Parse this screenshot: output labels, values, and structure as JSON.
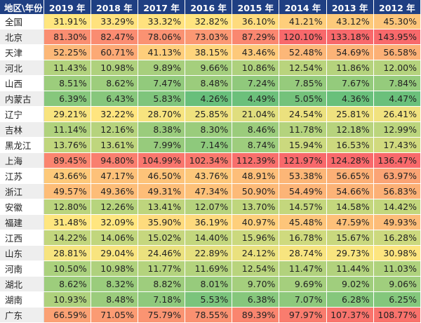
{
  "chart_data": {
    "type": "table",
    "title": "",
    "corner_label": "地区\\年份",
    "columns": [
      "2019 年",
      "2018 年",
      "2017 年",
      "2016 年",
      "2015 年",
      "2014 年",
      "2013 年",
      "2012 年"
    ],
    "rows": [
      {
        "region": "全国",
        "values": [
          "31.91%",
          "33.29%",
          "33.32%",
          "32.82%",
          "36.10%",
          "41.21%",
          "43.12%",
          "45.30%"
        ]
      },
      {
        "region": "北京",
        "values": [
          "81.30%",
          "82.47%",
          "78.06%",
          "73.03%",
          "87.29%",
          "120.10%",
          "133.18%",
          "143.95%"
        ]
      },
      {
        "region": "天津",
        "values": [
          "52.25%",
          "60.71%",
          "41.13%",
          "38.15%",
          "43.46%",
          "52.48%",
          "54.69%",
          "56.58%"
        ]
      },
      {
        "region": "河北",
        "values": [
          "11.43%",
          "10.98%",
          "9.89%",
          "9.66%",
          "10.86%",
          "12.54%",
          "11.86%",
          "12.00%"
        ]
      },
      {
        "region": "山西",
        "values": [
          "8.51%",
          "8.62%",
          "7.47%",
          "8.48%",
          "7.24%",
          "7.85%",
          "7.67%",
          "7.84%"
        ]
      },
      {
        "region": "内蒙古",
        "values": [
          "6.39%",
          "6.43%",
          "5.83%",
          "4.26%",
          "4.49%",
          "5.05%",
          "4.36%",
          "4.47%"
        ]
      },
      {
        "region": "辽宁",
        "values": [
          "29.21%",
          "32.22%",
          "28.70%",
          "25.85%",
          "21.04%",
          "24.54%",
          "25.81%",
          "26.41%"
        ]
      },
      {
        "region": "吉林",
        "values": [
          "11.14%",
          "12.16%",
          "8.38%",
          "8.30%",
          "8.46%",
          "11.78%",
          "12.18%",
          "12.99%"
        ]
      },
      {
        "region": "黑龙江",
        "values": [
          "13.76%",
          "13.61%",
          "7.99%",
          "7.14%",
          "8.74%",
          "15.94%",
          "16.53%",
          "17.43%"
        ]
      },
      {
        "region": "上海",
        "values": [
          "89.45%",
          "94.80%",
          "104.99%",
          "102.34%",
          "112.39%",
          "121.97%",
          "124.28%",
          "136.47%"
        ]
      },
      {
        "region": "江苏",
        "values": [
          "43.66%",
          "47.17%",
          "46.50%",
          "43.76%",
          "48.91%",
          "53.38%",
          "56.65%",
          "63.97%"
        ]
      },
      {
        "region": "浙江",
        "values": [
          "49.57%",
          "49.36%",
          "49.31%",
          "47.34%",
          "50.90%",
          "54.49%",
          "54.66%",
          "56.83%"
        ]
      },
      {
        "region": "安徽",
        "values": [
          "12.80%",
          "12.26%",
          "13.41%",
          "12.07%",
          "13.70%",
          "14.57%",
          "14.58%",
          "14.42%"
        ]
      },
      {
        "region": "福建",
        "values": [
          "31.48%",
          "32.09%",
          "35.90%",
          "36.19%",
          "40.97%",
          "45.48%",
          "47.59%",
          "49.93%"
        ]
      },
      {
        "region": "江西",
        "values": [
          "14.22%",
          "14.06%",
          "15.02%",
          "14.40%",
          "15.96%",
          "16.78%",
          "15.67%",
          "16.28%"
        ]
      },
      {
        "region": "山东",
        "values": [
          "28.81%",
          "29.04%",
          "24.46%",
          "22.89%",
          "24.12%",
          "28.74%",
          "29.73%",
          "30.98%"
        ]
      },
      {
        "region": "河南",
        "values": [
          "10.50%",
          "10.98%",
          "11.77%",
          "11.69%",
          "12.54%",
          "11.47%",
          "11.44%",
          "11.03%"
        ]
      },
      {
        "region": "湖北",
        "values": [
          "8.62%",
          "8.32%",
          "8.82%",
          "8.01%",
          "9.70%",
          "9.69%",
          "9.02%",
          "9.06%"
        ]
      },
      {
        "region": "湖南",
        "values": [
          "10.93%",
          "8.48%",
          "7.18%",
          "5.53%",
          "6.38%",
          "7.07%",
          "6.28%",
          "6.25%"
        ]
      },
      {
        "region": "广东",
        "values": [
          "66.59%",
          "71.05%",
          "75.79%",
          "78.55%",
          "89.39%",
          "97.97%",
          "107.37%",
          "108.77%"
        ]
      }
    ],
    "color_scale": {
      "low": "#63be7b",
      "mid": "#ffe67f",
      "high": "#f8696b"
    }
  }
}
